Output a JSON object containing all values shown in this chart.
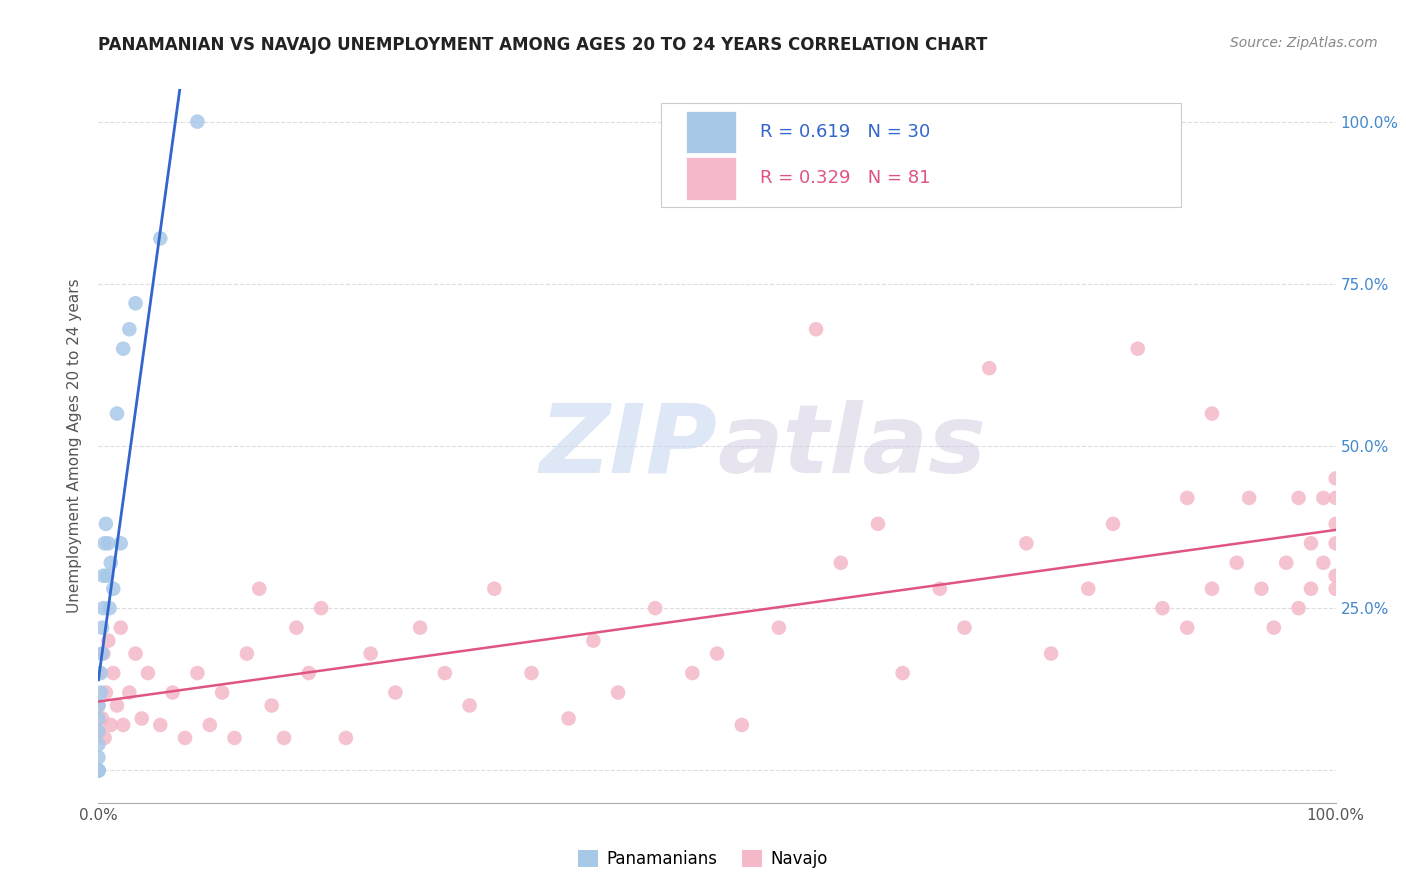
{
  "title": "PANAMANIAN VS NAVAJO UNEMPLOYMENT AMONG AGES 20 TO 24 YEARS CORRELATION CHART",
  "source": "Source: ZipAtlas.com",
  "ylabel": "Unemployment Among Ages 20 to 24 years",
  "xlim": [
    0.0,
    1.0
  ],
  "ylim": [
    -0.05,
    1.05
  ],
  "legend_R1": "0.619",
  "legend_N1": "30",
  "legend_R2": "0.329",
  "legend_N2": "81",
  "blue_scatter_color": "#a8c8e8",
  "pink_scatter_color": "#f4b8c8",
  "blue_line_color": "#3366cc",
  "pink_line_color": "#e05580",
  "watermark_color": "#c8d8f0",
  "background_color": "#ffffff",
  "grid_color": "#dddddd",
  "right_ytick_color": "#4488cc",
  "panamanian_x": [
    0.0,
    0.0,
    0.0,
    0.0,
    0.0,
    0.0,
    0.0,
    0.0,
    0.0,
    0.0,
    0.002,
    0.002,
    0.003,
    0.003,
    0.004,
    0.004,
    0.005,
    0.006,
    0.007,
    0.008,
    0.009,
    0.01,
    0.012,
    0.015,
    0.018,
    0.02,
    0.025,
    0.03,
    0.05,
    0.08
  ],
  "panamanian_y": [
    0.0,
    0.0,
    0.0,
    0.0,
    0.0,
    0.02,
    0.04,
    0.06,
    0.08,
    0.1,
    0.12,
    0.15,
    0.18,
    0.22,
    0.25,
    0.3,
    0.35,
    0.38,
    0.3,
    0.35,
    0.25,
    0.32,
    0.28,
    0.55,
    0.35,
    0.65,
    0.68,
    0.72,
    0.82,
    1.0
  ],
  "navajo_x": [
    0.0,
    0.0,
    0.0,
    0.003,
    0.004,
    0.005,
    0.006,
    0.008,
    0.01,
    0.012,
    0.015,
    0.018,
    0.02,
    0.025,
    0.03,
    0.035,
    0.04,
    0.05,
    0.06,
    0.07,
    0.08,
    0.09,
    0.1,
    0.11,
    0.12,
    0.13,
    0.14,
    0.15,
    0.16,
    0.17,
    0.18,
    0.2,
    0.22,
    0.24,
    0.26,
    0.28,
    0.3,
    0.32,
    0.35,
    0.38,
    0.4,
    0.42,
    0.45,
    0.48,
    0.5,
    0.52,
    0.55,
    0.58,
    0.6,
    0.63,
    0.65,
    0.68,
    0.7,
    0.72,
    0.75,
    0.77,
    0.8,
    0.82,
    0.84,
    0.86,
    0.88,
    0.88,
    0.9,
    0.9,
    0.92,
    0.93,
    0.94,
    0.95,
    0.96,
    0.97,
    0.97,
    0.98,
    0.98,
    0.99,
    0.99,
    1.0,
    1.0,
    1.0,
    1.0,
    1.0,
    1.0
  ],
  "navajo_y": [
    0.06,
    0.1,
    0.15,
    0.08,
    0.18,
    0.05,
    0.12,
    0.2,
    0.07,
    0.15,
    0.1,
    0.22,
    0.07,
    0.12,
    0.18,
    0.08,
    0.15,
    0.07,
    0.12,
    0.05,
    0.15,
    0.07,
    0.12,
    0.05,
    0.18,
    0.28,
    0.1,
    0.05,
    0.22,
    0.15,
    0.25,
    0.05,
    0.18,
    0.12,
    0.22,
    0.15,
    0.1,
    0.28,
    0.15,
    0.08,
    0.2,
    0.12,
    0.25,
    0.15,
    0.18,
    0.07,
    0.22,
    0.68,
    0.32,
    0.38,
    0.15,
    0.28,
    0.22,
    0.62,
    0.35,
    0.18,
    0.28,
    0.38,
    0.65,
    0.25,
    0.22,
    0.42,
    0.28,
    0.55,
    0.32,
    0.42,
    0.28,
    0.22,
    0.32,
    0.25,
    0.42,
    0.28,
    0.35,
    0.32,
    0.42,
    0.3,
    0.42,
    0.38,
    0.45,
    0.35,
    0.28
  ]
}
